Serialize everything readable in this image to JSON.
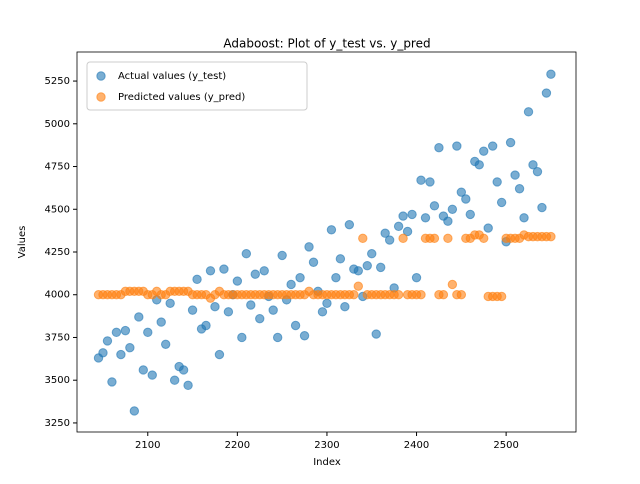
{
  "chart_data": {
    "type": "scatter",
    "title": "Adaboost: Plot of y_test vs. y_pred",
    "xlabel": "Index",
    "ylabel": "Values",
    "x": [
      2045,
      2050,
      2055,
      2060,
      2065,
      2070,
      2075,
      2080,
      2085,
      2090,
      2095,
      2100,
      2105,
      2110,
      2115,
      2120,
      2125,
      2130,
      2135,
      2140,
      2145,
      2150,
      2155,
      2160,
      2165,
      2170,
      2175,
      2180,
      2185,
      2190,
      2195,
      2200,
      2205,
      2210,
      2215,
      2220,
      2225,
      2230,
      2235,
      2240,
      2245,
      2250,
      2255,
      2260,
      2265,
      2270,
      2275,
      2280,
      2285,
      2290,
      2295,
      2300,
      2305,
      2310,
      2315,
      2320,
      2325,
      2330,
      2335,
      2340,
      2345,
      2350,
      2355,
      2360,
      2365,
      2370,
      2375,
      2380,
      2385,
      2390,
      2395,
      2400,
      2405,
      2410,
      2415,
      2420,
      2425,
      2430,
      2435,
      2440,
      2445,
      2450,
      2455,
      2460,
      2465,
      2470,
      2475,
      2480,
      2485,
      2490,
      2495,
      2500,
      2505,
      2510,
      2515,
      2520,
      2525,
      2530,
      2535,
      2540,
      2545,
      2550
    ],
    "series": [
      {
        "name": "Actual values (y_test)",
        "color": "#1f77b4",
        "values": [
          3630,
          3660,
          3730,
          3490,
          3780,
          3650,
          3790,
          3690,
          3320,
          3870,
          3560,
          3780,
          3530,
          3970,
          3840,
          3710,
          3950,
          3500,
          3580,
          3560,
          3470,
          3910,
          4090,
          3800,
          3820,
          4140,
          3930,
          3650,
          4150,
          3900,
          4000,
          4080,
          3750,
          4240,
          3940,
          4120,
          3860,
          4140,
          3990,
          3910,
          3750,
          4230,
          3970,
          4060,
          3820,
          4100,
          3760,
          4280,
          4190,
          4020,
          3900,
          3950,
          4380,
          4100,
          4210,
          3930,
          4410,
          4150,
          4140,
          3990,
          4170,
          4240,
          3770,
          4160,
          4360,
          4320,
          4040,
          4400,
          4460,
          4370,
          4470,
          4100,
          4670,
          4450,
          4660,
          4520,
          4860,
          4460,
          4430,
          4500,
          4870,
          4600,
          4560,
          4470,
          4780,
          4760,
          4840,
          4390,
          4870,
          4660,
          4540,
          4310,
          4890,
          4700,
          4620,
          4450,
          5070,
          4760,
          4720,
          4510,
          5180,
          5290
        ]
      },
      {
        "name": "Predicted values (y_pred)",
        "color": "#ff7f0e",
        "values": [
          4000,
          4000,
          4000,
          4000,
          4000,
          4000,
          4020,
          4020,
          4020,
          4020,
          4020,
          4000,
          4000,
          4020,
          4000,
          4000,
          4020,
          4020,
          4020,
          4020,
          4020,
          4000,
          4000,
          4000,
          4000,
          3980,
          4000,
          4020,
          4000,
          4000,
          4000,
          4000,
          4000,
          4000,
          4000,
          4000,
          4000,
          4000,
          4000,
          4000,
          4000,
          4000,
          4000,
          4000,
          4000,
          4000,
          4000,
          4020,
          4000,
          4000,
          4000,
          4000,
          4000,
          4000,
          4000,
          4000,
          4000,
          4000,
          4050,
          4330,
          4000,
          4000,
          4000,
          4000,
          4000,
          4000,
          4000,
          4000,
          4330,
          4000,
          4000,
          4000,
          4000,
          4330,
          4330,
          4330,
          4000,
          4000,
          4330,
          4060,
          4000,
          4000,
          4330,
          4330,
          4350,
          4350,
          4330,
          3990,
          3990,
          3990,
          3990,
          4330,
          4330,
          4330,
          4330,
          4350,
          4340,
          4340,
          4340,
          4340,
          4340,
          4340
        ]
      }
    ],
    "xlim": [
      2021,
      2578
    ],
    "ylim": [
      3197,
      5420
    ],
    "xticks": [
      2100,
      2200,
      2300,
      2400,
      2500
    ],
    "yticks": [
      3250,
      3500,
      3750,
      4000,
      4250,
      4500,
      4750,
      5000,
      5250
    ],
    "legend": "upper left"
  }
}
